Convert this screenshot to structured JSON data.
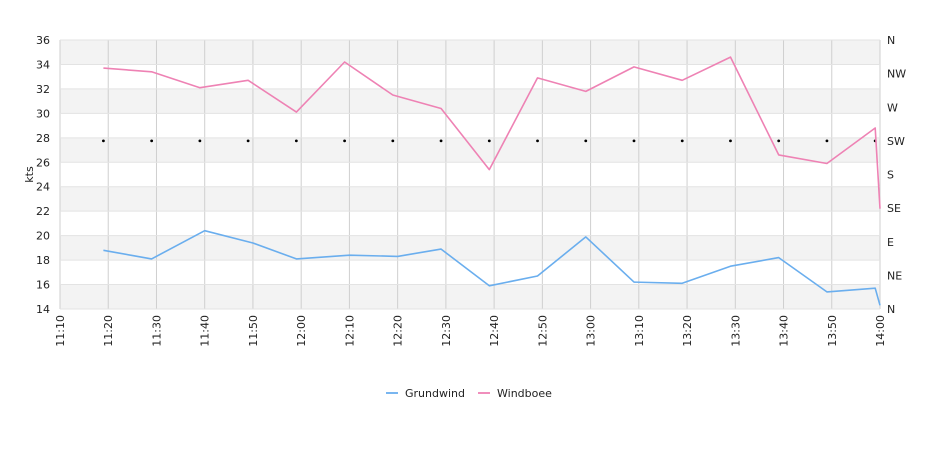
{
  "chart_data": {
    "type": "line",
    "ylabel": "kts",
    "ylim": [
      14,
      36
    ],
    "y_ticks": [
      "14",
      "16",
      "18",
      "20",
      "22",
      "24",
      "26",
      "28",
      "30",
      "32",
      "34",
      "36"
    ],
    "x_ticks": [
      "11:10",
      "11:20",
      "11:30",
      "11:40",
      "11:50",
      "12:00",
      "12:10",
      "12:20",
      "12:30",
      "12:40",
      "12:50",
      "13:00",
      "13:10",
      "13:20",
      "13:30",
      "13:40",
      "13:50",
      "14:00"
    ],
    "right_axis_ticks": [
      "N",
      "NE",
      "E",
      "SE",
      "S",
      "SW",
      "W",
      "NW",
      "N"
    ],
    "grid": true,
    "legend_position": "bottom",
    "series": [
      {
        "name": "Grundwind",
        "color": "#6aaeee",
        "x": [
          "11:19",
          "11:29",
          "11:40",
          "11:50",
          "11:59",
          "12:10",
          "12:20",
          "12:29",
          "12:39",
          "12:49",
          "12:59",
          "13:09",
          "13:19",
          "13:29",
          "13:39",
          "13:49",
          "13:59",
          "14:00"
        ],
        "values": [
          18.8,
          18.1,
          20.4,
          19.4,
          18.1,
          18.4,
          18.3,
          18.9,
          15.9,
          16.7,
          19.9,
          16.2,
          16.1,
          17.5,
          18.2,
          15.4,
          15.7,
          14.3
        ]
      },
      {
        "name": "Windboee",
        "color": "#ee82b4",
        "x": [
          "11:19",
          "11:29",
          "11:39",
          "11:49",
          "11:59",
          "12:09",
          "12:19",
          "12:29",
          "12:39",
          "12:49",
          "12:59",
          "13:09",
          "13:19",
          "13:29",
          "13:39",
          "13:49",
          "13:59",
          "14:00"
        ],
        "values": [
          33.7,
          33.4,
          32.1,
          32.7,
          30.1,
          34.2,
          31.5,
          30.4,
          25.4,
          32.9,
          31.8,
          33.8,
          32.7,
          34.6,
          26.6,
          25.9,
          28.8,
          22.2
        ]
      }
    ],
    "direction_markers": {
      "x": [
        "11:19",
        "11:29",
        "11:39",
        "11:49",
        "11:59",
        "12:09",
        "12:19",
        "12:29",
        "12:39",
        "12:49",
        "12:59",
        "13:09",
        "13:19",
        "13:29",
        "13:39",
        "13:49",
        "13:59"
      ],
      "value": "SW"
    }
  }
}
